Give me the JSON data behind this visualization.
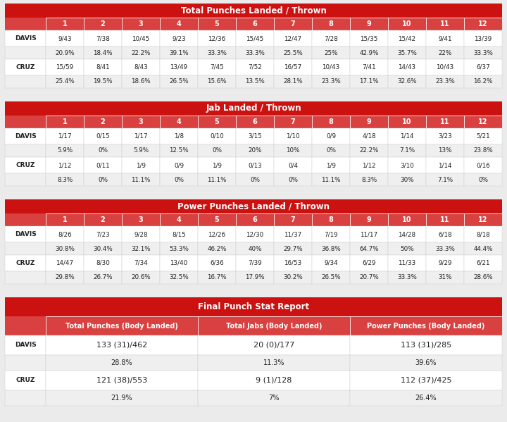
{
  "header_color": "#CC1111",
  "subheader_color": "#D94040",
  "white": "#FFFFFF",
  "dark": "#222222",
  "light_gray": "#EFEFEF",
  "bg_color": "#EBEBEB",
  "rounds": [
    "1",
    "2",
    "3",
    "4",
    "5",
    "6",
    "7",
    "8",
    "9",
    "10",
    "11",
    "12"
  ],
  "table1_title": "Total Punches Landed / Thrown",
  "table1_davis_line1": [
    "9/43",
    "7/38",
    "10/45",
    "9/23",
    "12/36",
    "15/45",
    "12/47",
    "7/28",
    "15/35",
    "15/42",
    "9/41",
    "13/39"
  ],
  "table1_davis_line2": [
    "20.9%",
    "18.4%",
    "22.2%",
    "39.1%",
    "33.3%",
    "33.3%",
    "25.5%",
    "25%",
    "42.9%",
    "35.7%",
    "22%",
    "33.3%"
  ],
  "table1_cruz_line1": [
    "15/59",
    "8/41",
    "8/43",
    "13/49",
    "7/45",
    "7/52",
    "16/57",
    "10/43",
    "7/41",
    "14/43",
    "10/43",
    "6/37"
  ],
  "table1_cruz_line2": [
    "25.4%",
    "19.5%",
    "18.6%",
    "26.5%",
    "15.6%",
    "13.5%",
    "28.1%",
    "23.3%",
    "17.1%",
    "32.6%",
    "23.3%",
    "16.2%"
  ],
  "table2_title": "Jab Landed / Thrown",
  "table2_davis_line1": [
    "1/17",
    "0/15",
    "1/17",
    "1/8",
    "0/10",
    "3/15",
    "1/10",
    "0/9",
    "4/18",
    "1/14",
    "3/23",
    "5/21"
  ],
  "table2_davis_line2": [
    "5.9%",
    "0%",
    "5.9%",
    "12.5%",
    "0%",
    "20%",
    "10%",
    "0%",
    "22.2%",
    "7.1%",
    "13%",
    "23.8%"
  ],
  "table2_cruz_line1": [
    "1/12",
    "0/11",
    "1/9",
    "0/9",
    "1/9",
    "0/13",
    "0/4",
    "1/9",
    "1/12",
    "3/10",
    "1/14",
    "0/16"
  ],
  "table2_cruz_line2": [
    "8.3%",
    "0%",
    "11.1%",
    "0%",
    "11.1%",
    "0%",
    "0%",
    "11.1%",
    "8.3%",
    "30%",
    "7.1%",
    "0%"
  ],
  "table3_title": "Power Punches Landed / Thrown",
  "table3_davis_line1": [
    "8/26",
    "7/23",
    "9/28",
    "8/15",
    "12/26",
    "12/30",
    "11/37",
    "7/19",
    "11/17",
    "14/28",
    "6/18",
    "8/18"
  ],
  "table3_davis_line2": [
    "30.8%",
    "30.4%",
    "32.1%",
    "53.3%",
    "46.2%",
    "40%",
    "29.7%",
    "36.8%",
    "64.7%",
    "50%",
    "33.3%",
    "44.4%"
  ],
  "table3_cruz_line1": [
    "14/47",
    "8/30",
    "7/34",
    "13/40",
    "6/36",
    "7/39",
    "16/53",
    "9/34",
    "6/29",
    "11/33",
    "9/29",
    "6/21"
  ],
  "table3_cruz_line2": [
    "29.8%",
    "26.7%",
    "20.6%",
    "32.5%",
    "16.7%",
    "17.9%",
    "30.2%",
    "26.5%",
    "20.7%",
    "33.3%",
    "31%",
    "28.6%"
  ],
  "table4_title": "Final Punch Stat Report",
  "table4_headers": [
    "Total Punches (Body Landed)",
    "Total Jabs (Body Landed)",
    "Power Punches (Body Landed)"
  ],
  "table4_davis_line1": [
    "133 (31)/462",
    "20 (0)/177",
    "113 (31)/285"
  ],
  "table4_davis_line2": [
    "28.8%",
    "11.3%",
    "39.6%"
  ],
  "table4_cruz_line1": [
    "121 (38)/553",
    "9 (1)/128",
    "112 (37)/425"
  ],
  "table4_cruz_line2": [
    "21.9%",
    "7%",
    "26.4%"
  ]
}
